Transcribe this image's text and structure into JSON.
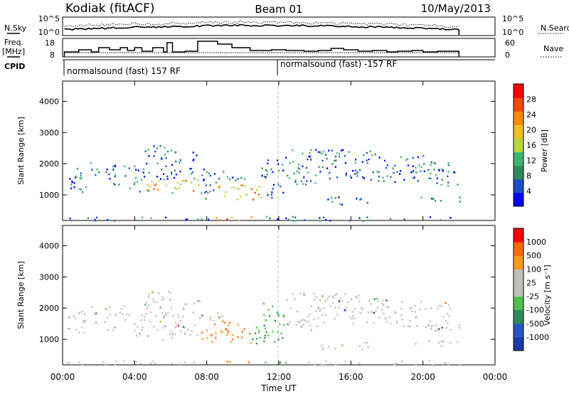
{
  "header": {
    "station": "Kodiak (fitACF)",
    "beam": "Beam 01",
    "date": "10/May/2013"
  },
  "status_panels": {
    "nsky_label": "N.Sky",
    "nsearch_label": "N.Search",
    "freq_label_1": "Freq.",
    "freq_label_2": "[MHz]",
    "nave_label": "Nave",
    "cpid_label": "CPID",
    "left_ticks_top": [
      "10^5",
      "10^0"
    ],
    "right_ticks_top": [
      "10^5",
      "10^0"
    ],
    "left_ticks_freq": [
      "18",
      "8"
    ],
    "right_ticks_nave": [
      "60",
      "0"
    ],
    "cpid_segments": [
      {
        "text": "normalsound (fast) 157 RF",
        "start_hour": 0
      },
      {
        "text": "normalsound (fast) -157 RF",
        "start_hour": 12
      }
    ]
  },
  "chart_data": [
    {
      "type": "heatmap",
      "name": "power",
      "ylabel": "Slant Range [km]",
      "yticks": [
        1000,
        2000,
        3000,
        4000
      ],
      "ylim": [
        180,
        4650
      ],
      "xlim": [
        0,
        24
      ],
      "colorbar": {
        "label": "Power [dB]",
        "ticks": [
          "28",
          "24",
          "20",
          "16",
          "12",
          "8",
          "4"
        ],
        "colors": [
          "#0000ff",
          "#1a4fc8",
          "#2e8b57",
          "#3cb371",
          "#b6d63c",
          "#f0c020",
          "#ff8c00",
          "#ff4500",
          "#ff0000"
        ]
      }
    },
    {
      "type": "heatmap",
      "name": "velocity",
      "ylabel": "Slant Range [km]",
      "yticks": [
        1000,
        2000,
        3000,
        4000
      ],
      "ylim": [
        180,
        4650
      ],
      "xlim": [
        0,
        24
      ],
      "colorbar": {
        "label": "Velocity [m s⁻¹]",
        "ticks": [
          "1000",
          "500",
          "100",
          "25",
          "-25",
          "-100",
          "-500",
          "-1000"
        ],
        "colors": [
          "#1a3caa",
          "#2a55c8",
          "#2e8b57",
          "#4cc24c",
          "#c0c0b8",
          "#c0c0b8",
          "#ff9a1a",
          "#ff6a00",
          "#ff0000"
        ]
      }
    }
  ],
  "xaxis": {
    "label": "Time UT",
    "ticks": [
      "00:00",
      "04:00",
      "08:00",
      "12:00",
      "16:00",
      "20:00",
      "00:00"
    ]
  }
}
